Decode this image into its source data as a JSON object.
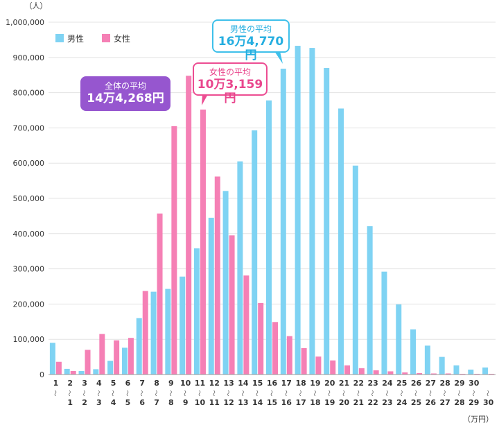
{
  "chart_data": {
    "type": "bar",
    "y_unit_label": "（人）",
    "x_unit_label": "（万円）",
    "ylim": [
      0,
      1000000
    ],
    "y_ticks": [
      "0",
      "100,000",
      "200,000",
      "300,000",
      "400,000",
      "500,000",
      "600,000",
      "700,000",
      "800,000",
      "900,000",
      "1,000,000"
    ],
    "categories": [
      {
        "top": "1",
        "bottom": ""
      },
      {
        "top": "2",
        "bottom": "1"
      },
      {
        "top": "3",
        "bottom": "2"
      },
      {
        "top": "4",
        "bottom": "3"
      },
      {
        "top": "5",
        "bottom": "4"
      },
      {
        "top": "6",
        "bottom": "5"
      },
      {
        "top": "7",
        "bottom": "6"
      },
      {
        "top": "8",
        "bottom": "7"
      },
      {
        "top": "9",
        "bottom": "8"
      },
      {
        "top": "10",
        "bottom": "9"
      },
      {
        "top": "11",
        "bottom": "10"
      },
      {
        "top": "12",
        "bottom": "11"
      },
      {
        "top": "13",
        "bottom": "12"
      },
      {
        "top": "14",
        "bottom": "13"
      },
      {
        "top": "15",
        "bottom": "14"
      },
      {
        "top": "16",
        "bottom": "15"
      },
      {
        "top": "17",
        "bottom": "16"
      },
      {
        "top": "18",
        "bottom": "17"
      },
      {
        "top": "19",
        "bottom": "18"
      },
      {
        "top": "20",
        "bottom": "19"
      },
      {
        "top": "21",
        "bottom": "20"
      },
      {
        "top": "22",
        "bottom": "21"
      },
      {
        "top": "23",
        "bottom": "22"
      },
      {
        "top": "24",
        "bottom": "23"
      },
      {
        "top": "25",
        "bottom": "24"
      },
      {
        "top": "26",
        "bottom": "25"
      },
      {
        "top": "27",
        "bottom": "26"
      },
      {
        "top": "28",
        "bottom": "27"
      },
      {
        "top": "29",
        "bottom": "28"
      },
      {
        "top": "30",
        "bottom": "29"
      },
      {
        "top": "",
        "bottom": "30"
      }
    ],
    "tilde": "～",
    "series": [
      {
        "name": "男性",
        "color": "#7fd3f3",
        "values": [
          90000,
          16000,
          10000,
          15000,
          39000,
          76000,
          160000,
          235000,
          243000,
          278000,
          358000,
          445000,
          521000,
          605000,
          693000,
          778000,
          868000,
          933000,
          927000,
          870000,
          755000,
          593000,
          421000,
          292000,
          199000,
          128000,
          82000,
          50000,
          26000,
          14000,
          20000
        ]
      },
      {
        "name": "女性",
        "color": "#f580b5",
        "values": [
          36000,
          10000,
          70000,
          115000,
          97000,
          104000,
          237000,
          457000,
          705000,
          848000,
          752000,
          562000,
          395000,
          281000,
          203000,
          149000,
          109000,
          75000,
          51000,
          40000,
          26000,
          18000,
          12000,
          9000,
          6000,
          4000,
          3000,
          3000,
          2000,
          2000,
          2000
        ]
      }
    ],
    "legend_position": "top-left",
    "grid": true,
    "annotations": {
      "total_avg": {
        "line1": "全体の平均",
        "line2": "14万4,268円"
      },
      "male_avg": {
        "line1": "男性の平均",
        "line2": "16万4,770円"
      },
      "female_avg": {
        "line1": "女性の平均",
        "line2": "10万3,159円"
      }
    }
  }
}
